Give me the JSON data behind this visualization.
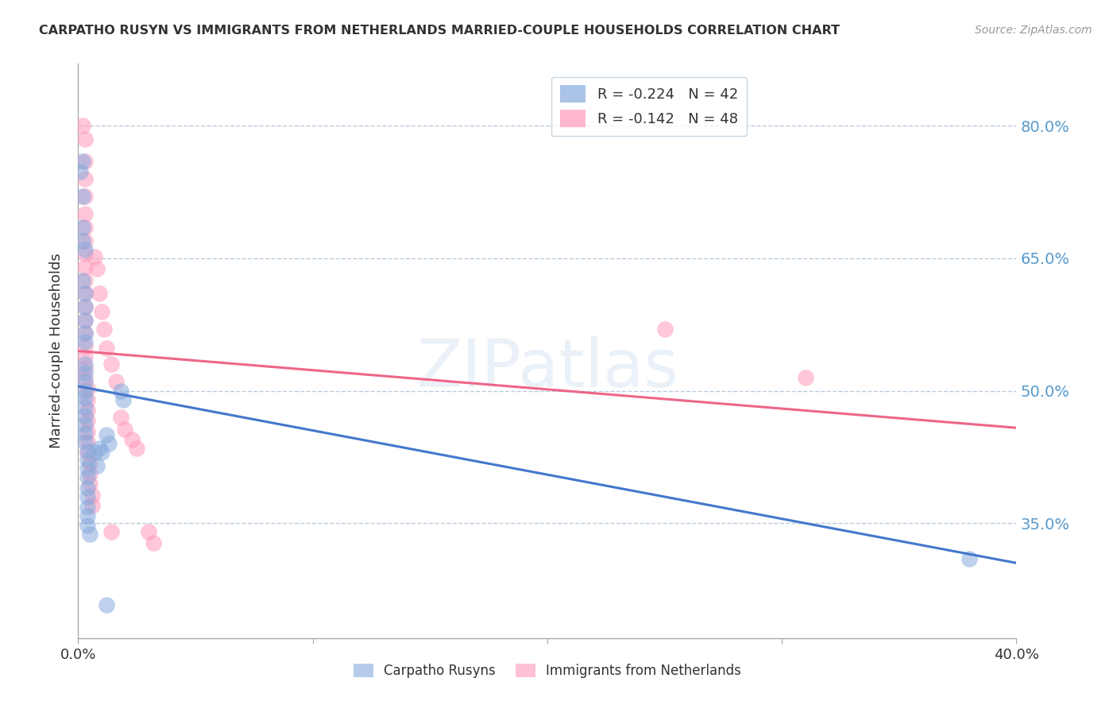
{
  "title": "CARPATHO RUSYN VS IMMIGRANTS FROM NETHERLANDS MARRIED-COUPLE HOUSEHOLDS CORRELATION CHART",
  "source": "Source: ZipAtlas.com",
  "ylabel": "Married-couple Households",
  "y_ticks": [
    0.35,
    0.5,
    0.65,
    0.8
  ],
  "y_tick_labels": [
    "35.0%",
    "50.0%",
    "65.0%",
    "80.0%"
  ],
  "xlim": [
    0.0,
    0.4
  ],
  "ylim": [
    0.22,
    0.87
  ],
  "legend_blue_r": "-0.224",
  "legend_blue_n": "42",
  "legend_pink_r": "-0.142",
  "legend_pink_n": "48",
  "watermark": "ZIPatlas",
  "blue_color": "#88AADD",
  "pink_color": "#FF99BB",
  "blue_line_color": "#4477CC",
  "pink_line_color": "#EE6688",
  "blue_scatter": [
    [
      0.001,
      0.748
    ],
    [
      0.002,
      0.72
    ],
    [
      0.002,
      0.685
    ],
    [
      0.002,
      0.67
    ],
    [
      0.003,
      0.66
    ],
    [
      0.002,
      0.625
    ],
    [
      0.003,
      0.61
    ],
    [
      0.003,
      0.595
    ],
    [
      0.003,
      0.58
    ],
    [
      0.003,
      0.565
    ],
    [
      0.003,
      0.555
    ],
    [
      0.003,
      0.53
    ],
    [
      0.003,
      0.52
    ],
    [
      0.003,
      0.51
    ],
    [
      0.003,
      0.5
    ],
    [
      0.003,
      0.492
    ],
    [
      0.003,
      0.482
    ],
    [
      0.003,
      0.472
    ],
    [
      0.003,
      0.462
    ],
    [
      0.003,
      0.452
    ],
    [
      0.003,
      0.442
    ],
    [
      0.004,
      0.432
    ],
    [
      0.004,
      0.422
    ],
    [
      0.004,
      0.412
    ],
    [
      0.004,
      0.402
    ],
    [
      0.004,
      0.39
    ],
    [
      0.004,
      0.38
    ],
    [
      0.004,
      0.368
    ],
    [
      0.004,
      0.358
    ],
    [
      0.004,
      0.348
    ],
    [
      0.005,
      0.338
    ],
    [
      0.007,
      0.43
    ],
    [
      0.008,
      0.415
    ],
    [
      0.009,
      0.435
    ],
    [
      0.01,
      0.43
    ],
    [
      0.012,
      0.45
    ],
    [
      0.013,
      0.44
    ],
    [
      0.018,
      0.5
    ],
    [
      0.019,
      0.49
    ],
    [
      0.38,
      0.31
    ],
    [
      0.012,
      0.258
    ],
    [
      0.002,
      0.76
    ]
  ],
  "pink_scatter": [
    [
      0.002,
      0.8
    ],
    [
      0.003,
      0.785
    ],
    [
      0.003,
      0.76
    ],
    [
      0.003,
      0.74
    ],
    [
      0.003,
      0.72
    ],
    [
      0.003,
      0.7
    ],
    [
      0.003,
      0.685
    ],
    [
      0.003,
      0.67
    ],
    [
      0.003,
      0.655
    ],
    [
      0.003,
      0.64
    ],
    [
      0.003,
      0.625
    ],
    [
      0.003,
      0.61
    ],
    [
      0.003,
      0.595
    ],
    [
      0.003,
      0.58
    ],
    [
      0.003,
      0.565
    ],
    [
      0.003,
      0.55
    ],
    [
      0.003,
      0.538
    ],
    [
      0.003,
      0.526
    ],
    [
      0.003,
      0.514
    ],
    [
      0.004,
      0.502
    ],
    [
      0.004,
      0.49
    ],
    [
      0.004,
      0.478
    ],
    [
      0.004,
      0.466
    ],
    [
      0.004,
      0.454
    ],
    [
      0.004,
      0.442
    ],
    [
      0.004,
      0.43
    ],
    [
      0.005,
      0.418
    ],
    [
      0.005,
      0.406
    ],
    [
      0.005,
      0.394
    ],
    [
      0.006,
      0.382
    ],
    [
      0.006,
      0.37
    ],
    [
      0.007,
      0.652
    ],
    [
      0.008,
      0.638
    ],
    [
      0.009,
      0.61
    ],
    [
      0.01,
      0.59
    ],
    [
      0.011,
      0.57
    ],
    [
      0.012,
      0.548
    ],
    [
      0.014,
      0.53
    ],
    [
      0.016,
      0.51
    ],
    [
      0.018,
      0.47
    ],
    [
      0.02,
      0.456
    ],
    [
      0.023,
      0.445
    ],
    [
      0.025,
      0.435
    ],
    [
      0.03,
      0.34
    ],
    [
      0.032,
      0.328
    ],
    [
      0.25,
      0.57
    ],
    [
      0.31,
      0.515
    ],
    [
      0.014,
      0.34
    ]
  ],
  "blue_line": {
    "x0": 0.0,
    "y0": 0.505,
    "x1": 0.4,
    "y1": 0.305
  },
  "pink_line": {
    "x0": 0.0,
    "y0": 0.545,
    "x1": 0.4,
    "y1": 0.458
  },
  "background_color": "#ffffff",
  "grid_color": "#BBCCDD",
  "spine_color": "#AAAAAA",
  "right_tick_color": "#5599CC",
  "source_color": "#999999",
  "title_color": "#333333"
}
